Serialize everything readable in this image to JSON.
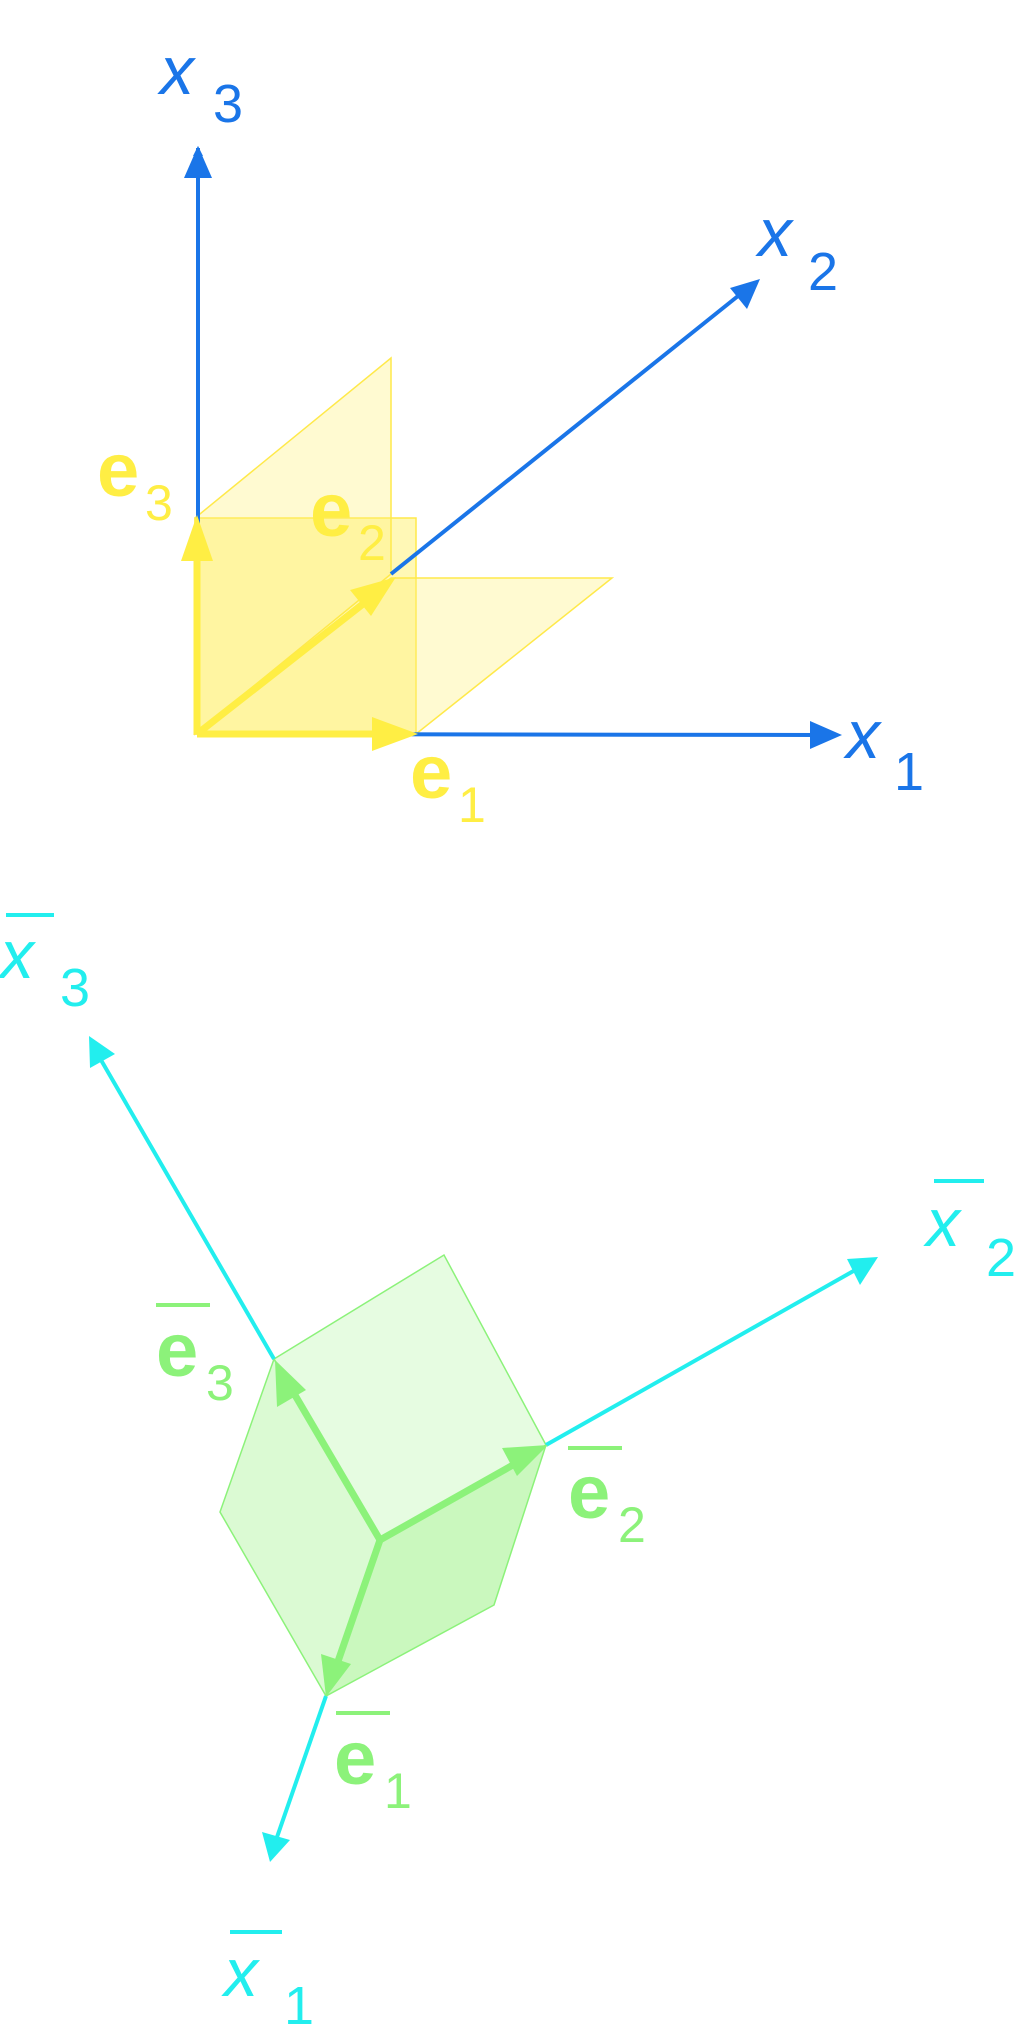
{
  "colors": {
    "original_axes": "#1a75e8",
    "original_basis": "#ffee44",
    "original_plane_fill": "#fff27a",
    "rotated_axes": "#22eeee",
    "rotated_basis": "#8cf27a",
    "rotated_cube_fill": "#b8f5a8"
  },
  "original_frame": {
    "axes": [
      {
        "letter": "x",
        "index": "1"
      },
      {
        "letter": "x",
        "index": "2"
      },
      {
        "letter": "x",
        "index": "3"
      }
    ],
    "basis": [
      {
        "letter": "e",
        "index": "1"
      },
      {
        "letter": "e",
        "index": "2"
      },
      {
        "letter": "e",
        "index": "3"
      }
    ]
  },
  "rotated_frame": {
    "axes": [
      {
        "letter": "x",
        "index": "1"
      },
      {
        "letter": "x",
        "index": "2"
      },
      {
        "letter": "x",
        "index": "3"
      }
    ],
    "basis": [
      {
        "letter": "e",
        "index": "1"
      },
      {
        "letter": "e",
        "index": "2"
      },
      {
        "letter": "e",
        "index": "3"
      }
    ]
  }
}
